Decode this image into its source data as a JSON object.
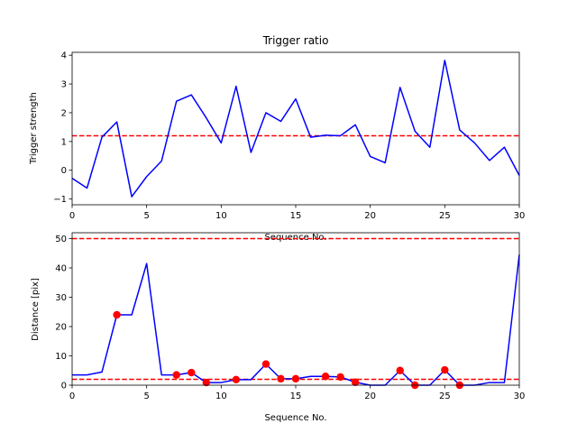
{
  "chart_data": [
    {
      "type": "line",
      "title": "Trigger ratio",
      "xlabel": "Sequence No.",
      "ylabel": "Trigger strength",
      "xlim": [
        0,
        30
      ],
      "ylim": [
        -1.2,
        4.1
      ],
      "xticks": [
        0,
        5,
        10,
        15,
        20,
        25,
        30
      ],
      "yticks": [
        -1,
        0,
        1,
        2,
        3,
        4
      ],
      "yticklabels": [
        "−1",
        "0",
        "1",
        "2",
        "3",
        "4"
      ],
      "grid": false,
      "threshold": 1.2,
      "series": [
        {
          "color": "#0000ff",
          "x": [
            0,
            1,
            2,
            3,
            4,
            5,
            6,
            7,
            8,
            9,
            10,
            11,
            12,
            13,
            14,
            15,
            16,
            17,
            18,
            19,
            20,
            21,
            22,
            23,
            24,
            25,
            26,
            27,
            28,
            29,
            30
          ],
          "values": [
            -0.28,
            -0.62,
            1.15,
            1.68,
            -0.92,
            -0.22,
            0.32,
            2.4,
            2.62,
            1.82,
            0.95,
            2.92,
            0.62,
            2.0,
            1.7,
            2.48,
            1.15,
            1.22,
            1.2,
            1.58,
            0.48,
            0.26,
            2.88,
            1.36,
            0.8,
            3.82,
            1.4,
            0.95,
            0.34,
            0.8,
            -0.18
          ]
        }
      ],
      "threshold_color": "#ff0000"
    },
    {
      "type": "line",
      "xlabel": "Sequence No.",
      "ylabel": "Distance [pix]",
      "xlim": [
        0,
        30
      ],
      "ylim": [
        0,
        52
      ],
      "xticks": [
        0,
        5,
        10,
        15,
        20,
        25,
        30
      ],
      "yticks": [
        0,
        10,
        20,
        30,
        40,
        50
      ],
      "yticklabels": [
        "0",
        "10",
        "20",
        "30",
        "40",
        "50"
      ],
      "grid": false,
      "thresholds": [
        50,
        2
      ],
      "threshold_color": "#ff0000",
      "series": [
        {
          "color": "#0000ff",
          "x": [
            0,
            1,
            2,
            3,
            4,
            5,
            6,
            7,
            8,
            9,
            10,
            11,
            12,
            13,
            14,
            15,
            16,
            17,
            18,
            19,
            20,
            21,
            22,
            23,
            24,
            25,
            26,
            27,
            28,
            29,
            30
          ],
          "values": [
            3.5,
            3.5,
            4.5,
            24.0,
            24.0,
            41.5,
            3.5,
            3.5,
            4.3,
            0.9,
            0.9,
            1.9,
            1.9,
            7.2,
            2.2,
            2.2,
            3.0,
            3.0,
            2.8,
            1.0,
            0.0,
            0.0,
            5.0,
            0.0,
            0.0,
            5.2,
            0.0,
            0.0,
            0.9,
            0.9,
            44.5
          ]
        }
      ],
      "markers": {
        "color": "#ff0000",
        "x": [
          3,
          7,
          8,
          9,
          11,
          13,
          14,
          15,
          17,
          18,
          19,
          22,
          23,
          25,
          26
        ],
        "values": [
          24.0,
          3.5,
          4.3,
          0.9,
          1.9,
          7.2,
          2.2,
          2.2,
          3.0,
          2.8,
          1.0,
          5.0,
          0.0,
          5.2,
          0.0
        ]
      }
    }
  ]
}
